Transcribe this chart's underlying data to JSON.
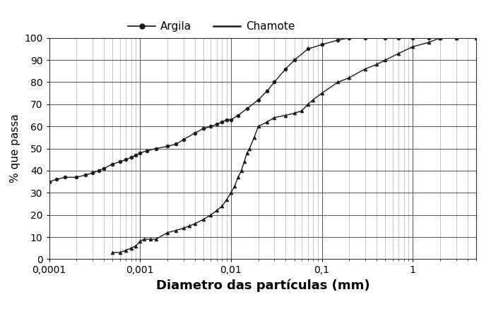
{
  "title": "",
  "xlabel": "Diametro das partículas (mm)",
  "ylabel": "% que passa",
  "xlim": [
    0.0001,
    5
  ],
  "ylim": [
    0,
    100
  ],
  "yticks": [
    0,
    10,
    20,
    30,
    40,
    50,
    60,
    70,
    80,
    90,
    100
  ],
  "xtick_labels": [
    "0,0001",
    "0,001",
    "0,01",
    "0,1",
    "1"
  ],
  "xtick_values": [
    0.0001,
    0.001,
    0.01,
    0.1,
    1.0
  ],
  "argila_x": [
    0.0001,
    0.00012,
    0.00015,
    0.0002,
    0.00025,
    0.0003,
    0.00035,
    0.0004,
    0.0005,
    0.0006,
    0.0007,
    0.0008,
    0.0009,
    0.001,
    0.0012,
    0.0015,
    0.002,
    0.0025,
    0.003,
    0.004,
    0.005,
    0.006,
    0.007,
    0.008,
    0.009,
    0.01,
    0.012,
    0.015,
    0.02,
    0.025,
    0.03,
    0.04,
    0.05,
    0.07,
    0.1,
    0.15,
    0.2,
    0.3,
    0.5,
    0.7,
    1.0,
    1.5,
    2.0,
    3.0,
    5.0
  ],
  "argila_y": [
    35,
    36,
    37,
    37,
    38,
    39,
    40,
    41,
    43,
    44,
    45,
    46,
    47,
    48,
    49,
    50,
    51,
    52,
    54,
    57,
    59,
    60,
    61,
    62,
    63,
    63,
    65,
    68,
    72,
    76,
    80,
    86,
    90,
    95,
    97,
    99,
    100,
    100,
    100,
    100,
    100,
    100,
    100,
    100,
    100
  ],
  "chamote_x": [
    0.0005,
    0.0006,
    0.0007,
    0.0008,
    0.0009,
    0.001,
    0.0011,
    0.0013,
    0.0015,
    0.002,
    0.0025,
    0.003,
    0.0035,
    0.004,
    0.005,
    0.006,
    0.007,
    0.008,
    0.009,
    0.01,
    0.011,
    0.012,
    0.013,
    0.014,
    0.015,
    0.016,
    0.018,
    0.02,
    0.025,
    0.03,
    0.04,
    0.05,
    0.06,
    0.07,
    0.08,
    0.1,
    0.15,
    0.2,
    0.3,
    0.4,
    0.5,
    0.7,
    1.0,
    1.5,
    2.0,
    3.0,
    5.0
  ],
  "chamote_y": [
    3,
    3,
    4,
    5,
    6,
    8,
    9,
    9,
    9,
    12,
    13,
    14,
    15,
    16,
    18,
    20,
    22,
    24,
    27,
    30,
    33,
    37,
    40,
    44,
    48,
    50,
    55,
    60,
    62,
    64,
    65,
    66,
    67,
    70,
    72,
    75,
    80,
    82,
    86,
    88,
    90,
    93,
    96,
    98,
    100,
    100,
    100
  ],
  "line_color": "#1a1a1a",
  "bg_color": "#ffffff",
  "grid_major_color": "#555555",
  "grid_minor_color": "#999999",
  "legend_argila": "Argila",
  "legend_chamote": "Chamote",
  "xlabel_fontsize": 13,
  "ylabel_fontsize": 11,
  "tick_fontsize": 10,
  "legend_fontsize": 11
}
